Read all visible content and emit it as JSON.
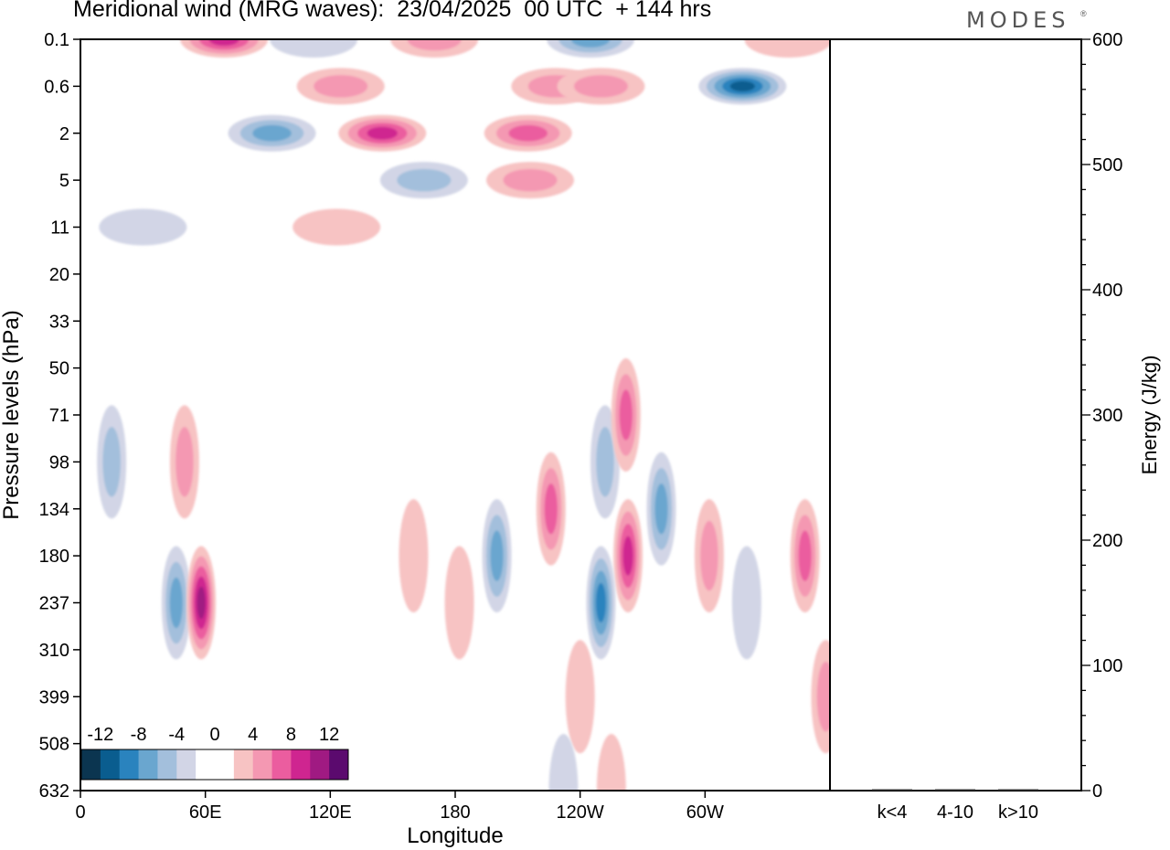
{
  "title": "Meridional wind (MRG waves):  23/04/2025  00 UTC  + 144 hrs",
  "brand": "MODES",
  "brand_mark": "®",
  "chart_data": [
    {
      "type": "heatmap",
      "title": "Meridional wind (MRG waves):  23/04/2025  00 UTC  + 144 hrs",
      "xlabel": "Longitude",
      "ylabel": "Pressure levels (hPa)",
      "x_ticks": [
        {
          "lon": 0,
          "label": "0"
        },
        {
          "lon": 60,
          "label": "60E"
        },
        {
          "lon": 120,
          "label": "120E"
        },
        {
          "lon": 180,
          "label": "180"
        },
        {
          "lon": 240,
          "label": "120W"
        },
        {
          "lon": 300,
          "label": "60W"
        }
      ],
      "xlim": [
        0,
        360
      ],
      "y_levels": [
        "0.1",
        "0.6",
        "2",
        "5",
        "11",
        "20",
        "33",
        "50",
        "71",
        "98",
        "134",
        "180",
        "237",
        "310",
        "399",
        "508",
        "632"
      ],
      "ylim": [
        "0.1",
        "632"
      ],
      "colorbar": {
        "tick_labels": [
          "-12",
          "-8",
          "-4",
          "0",
          "4",
          "8",
          "12"
        ],
        "colors": [
          "#0b3550",
          "#0a5d8f",
          "#2a83be",
          "#6aa6cf",
          "#a3bfdc",
          "#d2d5e6",
          "#ffffff",
          "#ffffff",
          "#f7c3c3",
          "#f498b2",
          "#eb5d9f",
          "#cf2590",
          "#a01a82",
          "#5b0a6e"
        ]
      },
      "features": [
        {
          "lon": 69,
          "p": "0.1",
          "value": 10
        },
        {
          "lon": 112,
          "p": "0.1",
          "value": -3
        },
        {
          "lon": 170,
          "p": "0.1",
          "value": 6
        },
        {
          "lon": 245,
          "p": "0.1",
          "value": -7
        },
        {
          "lon": 340,
          "p": "0.1",
          "value": 3
        },
        {
          "lon": 125,
          "p": "0.6",
          "value": 6
        },
        {
          "lon": 228,
          "p": "0.6",
          "value": 5
        },
        {
          "lon": 250,
          "p": "0.6",
          "value": 6
        },
        {
          "lon": 318,
          "p": "0.6",
          "value": -12
        },
        {
          "lon": 215,
          "p": "2",
          "value": 8
        },
        {
          "lon": 92,
          "p": "2",
          "value": -7
        },
        {
          "lon": 145,
          "p": "2",
          "value": 9
        },
        {
          "lon": 165,
          "p": "5",
          "value": -6
        },
        {
          "lon": 216,
          "p": "5",
          "value": 6
        },
        {
          "lon": 30,
          "p": "11",
          "value": -3
        },
        {
          "lon": 123,
          "p": "11",
          "value": 3
        },
        {
          "lon": 15,
          "p": "98",
          "value": -5
        },
        {
          "lon": 50,
          "p": "98",
          "value": 6
        },
        {
          "lon": 46,
          "p": "237",
          "value": -7
        },
        {
          "lon": 58,
          "p": "237",
          "value": 11
        },
        {
          "lon": 160,
          "p": "180",
          "value": 3
        },
        {
          "lon": 182,
          "p": "237",
          "value": 4
        },
        {
          "lon": 200,
          "p": "180",
          "value": -8
        },
        {
          "lon": 226,
          "p": "134",
          "value": 8
        },
        {
          "lon": 252,
          "p": "98",
          "value": -6
        },
        {
          "lon": 262,
          "p": "71",
          "value": 7
        },
        {
          "lon": 263,
          "p": "180",
          "value": 10
        },
        {
          "lon": 250,
          "p": "237",
          "value": -10
        },
        {
          "lon": 279,
          "p": "134",
          "value": -7
        },
        {
          "lon": 302,
          "p": "180",
          "value": 6
        },
        {
          "lon": 320,
          "p": "237",
          "value": -3
        },
        {
          "lon": 348,
          "p": "180",
          "value": 8
        },
        {
          "lon": 358,
          "p": "399",
          "value": 5
        },
        {
          "lon": 240,
          "p": "399",
          "value": 3
        },
        {
          "lon": 232,
          "p": "632",
          "value": -3
        },
        {
          "lon": 255,
          "p": "632",
          "value": 3
        }
      ]
    },
    {
      "type": "bar",
      "ylabel": "Energy (J/kg)",
      "categories": [
        "k<4",
        "4-10",
        "k>10"
      ],
      "values": [
        0,
        1,
        0
      ],
      "ylim": [
        0,
        600
      ],
      "y_ticks": [
        "0",
        "100",
        "200",
        "300",
        "400",
        "500",
        "600"
      ]
    }
  ]
}
